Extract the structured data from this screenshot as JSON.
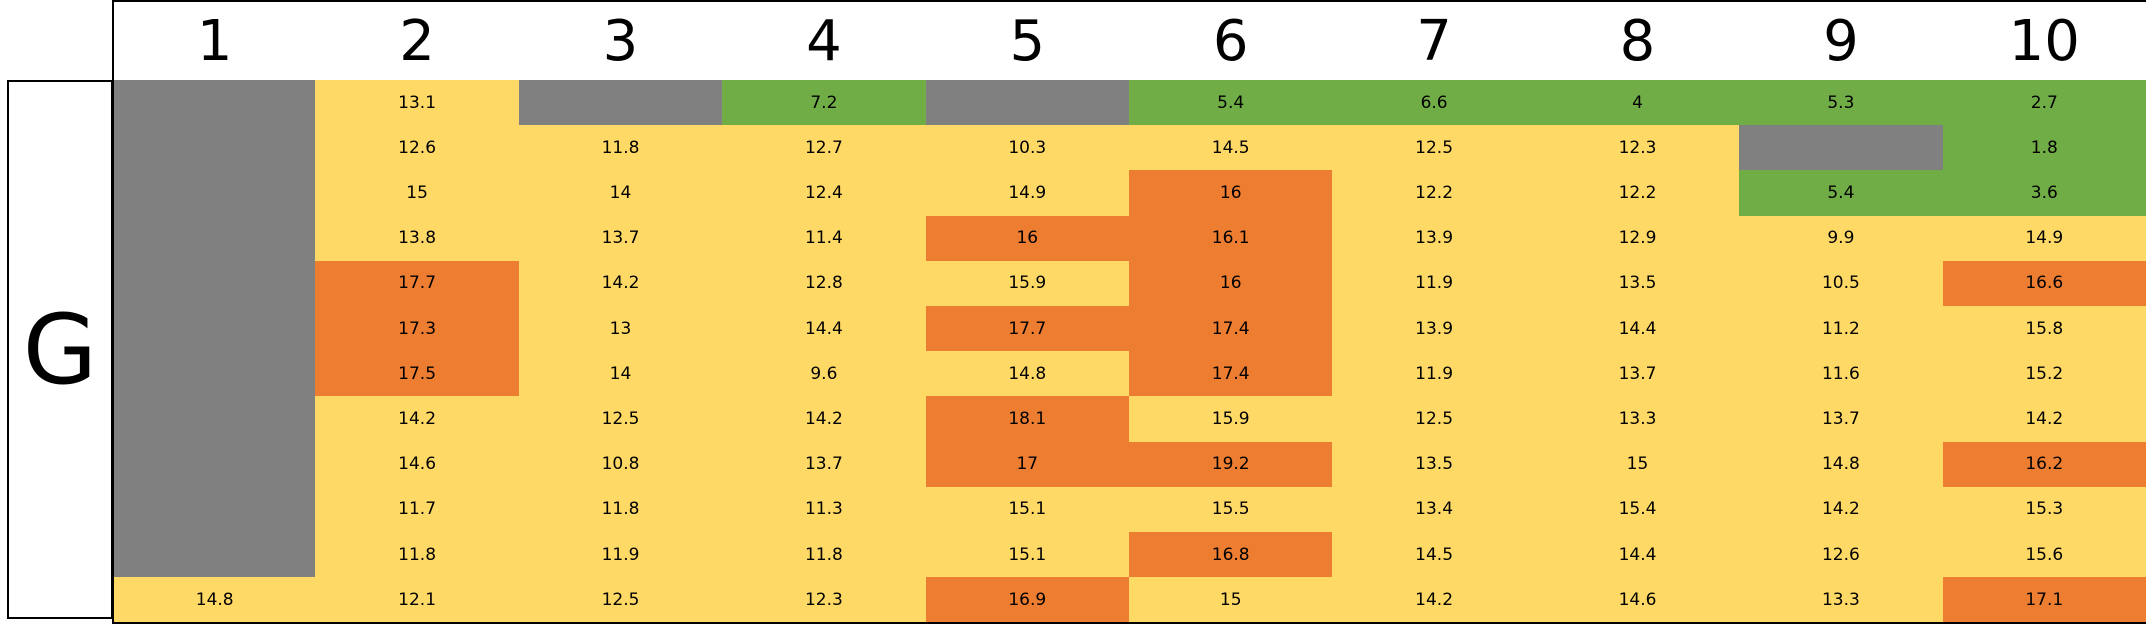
{
  "colors": {
    "na": "#808080",
    "green": "#70AD47",
    "yellow": "#FFD966",
    "orange": "#ED7D31"
  },
  "chart_data": {
    "type": "heatmap",
    "row_label": "G",
    "columns": [
      "1",
      "2",
      "3",
      "4",
      "5",
      "6",
      "7",
      "8",
      "9",
      "10"
    ],
    "values": [
      [
        null,
        13.1,
        null,
        7.2,
        null,
        5.4,
        6.6,
        4,
        5.3,
        2.7
      ],
      [
        null,
        12.6,
        11.8,
        12.7,
        10.3,
        14.5,
        12.5,
        12.3,
        null,
        1.8
      ],
      [
        null,
        15,
        14,
        12.4,
        14.9,
        16,
        12.2,
        12.2,
        5.4,
        3.6
      ],
      [
        null,
        13.8,
        13.7,
        11.4,
        16,
        16.1,
        13.9,
        12.9,
        9.9,
        14.9
      ],
      [
        null,
        17.7,
        14.2,
        12.8,
        15.9,
        16,
        11.9,
        13.5,
        10.5,
        16.6
      ],
      [
        null,
        17.3,
        13,
        14.4,
        17.7,
        17.4,
        13.9,
        14.4,
        11.2,
        15.8
      ],
      [
        null,
        17.5,
        14,
        9.6,
        14.8,
        17.4,
        11.9,
        13.7,
        11.6,
        15.2
      ],
      [
        null,
        14.2,
        12.5,
        14.2,
        18.1,
        15.9,
        12.5,
        13.3,
        13.7,
        14.2
      ],
      [
        null,
        14.6,
        10.8,
        13.7,
        17,
        19.2,
        13.5,
        15,
        14.8,
        16.2
      ],
      [
        null,
        11.7,
        11.8,
        11.3,
        15.1,
        15.5,
        13.4,
        15.4,
        14.2,
        15.3
      ],
      [
        null,
        11.8,
        11.9,
        11.8,
        15.1,
        16.8,
        14.5,
        14.4,
        12.6,
        15.6
      ],
      [
        14.8,
        12.1,
        12.5,
        12.3,
        16.9,
        15,
        14.2,
        14.6,
        13.3,
        17.1
      ]
    ],
    "color_bins": [
      {
        "color": "green",
        "max": 9
      },
      {
        "color": "yellow",
        "max": 15.95
      },
      {
        "color": "orange",
        "max": 100
      }
    ]
  }
}
